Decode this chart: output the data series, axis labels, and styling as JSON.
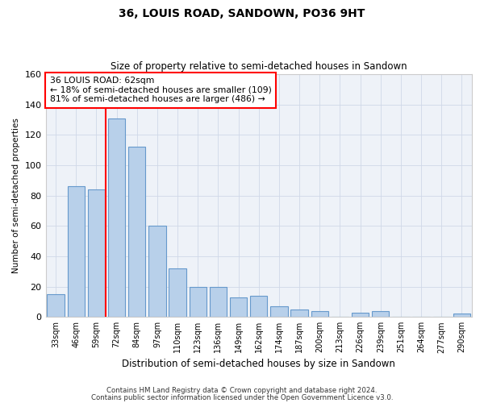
{
  "title": "36, LOUIS ROAD, SANDOWN, PO36 9HT",
  "subtitle": "Size of property relative to semi-detached houses in Sandown",
  "xlabel": "Distribution of semi-detached houses by size in Sandown",
  "ylabel": "Number of semi-detached properties",
  "categories": [
    "33sqm",
    "46sqm",
    "59sqm",
    "72sqm",
    "84sqm",
    "97sqm",
    "110sqm",
    "123sqm",
    "136sqm",
    "149sqm",
    "162sqm",
    "174sqm",
    "187sqm",
    "200sqm",
    "213sqm",
    "226sqm",
    "239sqm",
    "251sqm",
    "264sqm",
    "277sqm",
    "290sqm"
  ],
  "values": [
    15,
    86,
    84,
    131,
    112,
    60,
    32,
    20,
    20,
    13,
    14,
    7,
    5,
    4,
    0,
    3,
    4,
    0,
    0,
    0,
    2
  ],
  "bar_color": "#b8d0ea",
  "bar_edge_color": "#6699cc",
  "grid_color": "#d0d8e8",
  "background_color": "#ffffff",
  "plot_bg_color": "#eef2f8",
  "red_line_x": 2.45,
  "annotation_text_line1": "36 LOUIS ROAD: 62sqm",
  "annotation_text_line2": "← 18% of semi-detached houses are smaller (109)",
  "annotation_text_line3": "81% of semi-detached houses are larger (486) →",
  "ylim": [
    0,
    160
  ],
  "footer_line1": "Contains HM Land Registry data © Crown copyright and database right 2024.",
  "footer_line2": "Contains public sector information licensed under the Open Government Licence v3.0."
}
